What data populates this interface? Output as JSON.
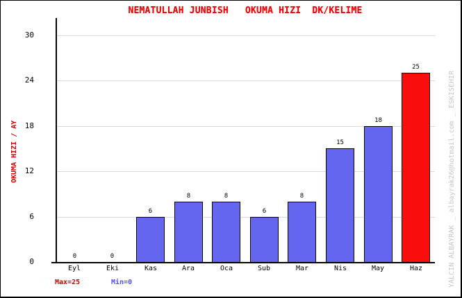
{
  "title": "NEMATULLAH JUNBISH   OKUMA HIZI  DK/KELIME",
  "watermark": "YALCIN ALBAYRAK _ albayrak26@hotmail.com _ ESKISEHIR",
  "footer": {
    "max_label": "Max=25",
    "min_label": "Min=0"
  },
  "chart_data": {
    "type": "bar",
    "title": "NEMATULLAH JUNBISH   OKUMA HIZI  DK/KELIME",
    "categories": [
      "Eyl",
      "Eki",
      "Kas",
      "Ara",
      "Oca",
      "Sub",
      "Mar",
      "Nis",
      "May",
      "Haz"
    ],
    "values": [
      0,
      0,
      6,
      8,
      8,
      6,
      8,
      15,
      18,
      25
    ],
    "highlight_index": 9,
    "xlabel": "",
    "ylabel": "OKUMA HIZI / AY",
    "yticks": [
      0,
      6,
      12,
      18,
      24,
      30
    ],
    "ylim": [
      0,
      32
    ],
    "grid": true,
    "legend_position": "none",
    "annotations": [
      "Max=25",
      "Min=0"
    ]
  },
  "colors": {
    "background": "#ffffff",
    "bar_fill": "#6466f0",
    "bar_highlight": "#f90d0d",
    "bar_border": "#000000",
    "title": "#f00000",
    "y_axis_title": "#d00000",
    "max_label": "#cc0000",
    "min_label": "#5252e0",
    "gridline": "#d9d9d9",
    "axis": "#000000",
    "tick_text": "#000000",
    "watermark": "#c6c6c6"
  }
}
